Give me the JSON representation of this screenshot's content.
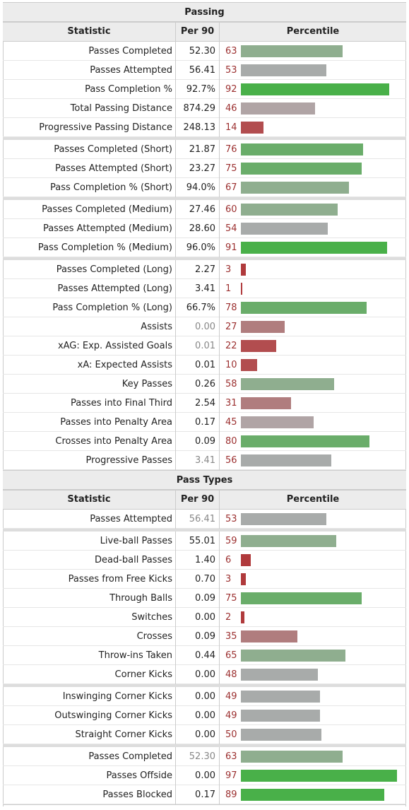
{
  "sections": [
    {
      "title": "Passing",
      "header": [
        "Statistic",
        "Per 90",
        "Percentile"
      ],
      "groups": [
        [
          {
            "stat": "Passes Completed",
            "per90": "52.30",
            "pct": 63
          },
          {
            "stat": "Passes Attempted",
            "per90": "56.41",
            "pct": 53
          },
          {
            "stat": "Pass Completion %",
            "per90": "92.7%",
            "pct": 92
          },
          {
            "stat": "Total Passing Distance",
            "per90": "874.29",
            "pct": 46
          },
          {
            "stat": "Progressive Passing Distance",
            "per90": "248.13",
            "pct": 14
          }
        ],
        [
          {
            "stat": "Passes Completed (Short)",
            "per90": "21.87",
            "pct": 76
          },
          {
            "stat": "Passes Attempted (Short)",
            "per90": "23.27",
            "pct": 75
          },
          {
            "stat": "Pass Completion % (Short)",
            "per90": "94.0%",
            "pct": 67
          }
        ],
        [
          {
            "stat": "Passes Completed (Medium)",
            "per90": "27.46",
            "pct": 60
          },
          {
            "stat": "Passes Attempted (Medium)",
            "per90": "28.60",
            "pct": 54
          },
          {
            "stat": "Pass Completion % (Medium)",
            "per90": "96.0%",
            "pct": 91
          }
        ],
        [
          {
            "stat": "Passes Completed (Long)",
            "per90": "2.27",
            "pct": 3
          },
          {
            "stat": "Passes Attempted (Long)",
            "per90": "3.41",
            "pct": 1
          },
          {
            "stat": "Pass Completion % (Long)",
            "per90": "66.7%",
            "pct": 78
          },
          {
            "stat": "Assists",
            "per90": "0.00",
            "pct": 27,
            "muted": true
          },
          {
            "stat": "xAG: Exp. Assisted Goals",
            "per90": "0.01",
            "pct": 22,
            "muted": true
          },
          {
            "stat": "xA: Expected Assists",
            "per90": "0.01",
            "pct": 10
          },
          {
            "stat": "Key Passes",
            "per90": "0.26",
            "pct": 58
          },
          {
            "stat": "Passes into Final Third",
            "per90": "2.54",
            "pct": 31
          },
          {
            "stat": "Passes into Penalty Area",
            "per90": "0.17",
            "pct": 45
          },
          {
            "stat": "Crosses into Penalty Area",
            "per90": "0.09",
            "pct": 80
          },
          {
            "stat": "Progressive Passes",
            "per90": "3.41",
            "pct": 56,
            "muted": true
          }
        ]
      ]
    },
    {
      "title": "Pass Types",
      "header": [
        "Statistic",
        "Per 90",
        "Percentile"
      ],
      "groups": [
        [
          {
            "stat": "Passes Attempted",
            "per90": "56.41",
            "pct": 53,
            "muted": true
          }
        ],
        [
          {
            "stat": "Live-ball Passes",
            "per90": "55.01",
            "pct": 59
          },
          {
            "stat": "Dead-ball Passes",
            "per90": "1.40",
            "pct": 6
          },
          {
            "stat": "Passes from Free Kicks",
            "per90": "0.70",
            "pct": 3
          },
          {
            "stat": "Through Balls",
            "per90": "0.09",
            "pct": 75
          },
          {
            "stat": "Switches",
            "per90": "0.00",
            "pct": 2
          },
          {
            "stat": "Crosses",
            "per90": "0.09",
            "pct": 35
          },
          {
            "stat": "Throw-ins Taken",
            "per90": "0.44",
            "pct": 65
          },
          {
            "stat": "Corner Kicks",
            "per90": "0.00",
            "pct": 48
          }
        ],
        [
          {
            "stat": "Inswinging Corner Kicks",
            "per90": "0.00",
            "pct": 49
          },
          {
            "stat": "Outswinging Corner Kicks",
            "per90": "0.00",
            "pct": 49
          },
          {
            "stat": "Straight Corner Kicks",
            "per90": "0.00",
            "pct": 50
          }
        ],
        [
          {
            "stat": "Passes Completed",
            "per90": "52.30",
            "pct": 63,
            "muted": true
          },
          {
            "stat": "Passes Offside",
            "per90": "0.00",
            "pct": 97
          },
          {
            "stat": "Passes Blocked",
            "per90": "0.17",
            "pct": 89
          }
        ]
      ]
    }
  ]
}
